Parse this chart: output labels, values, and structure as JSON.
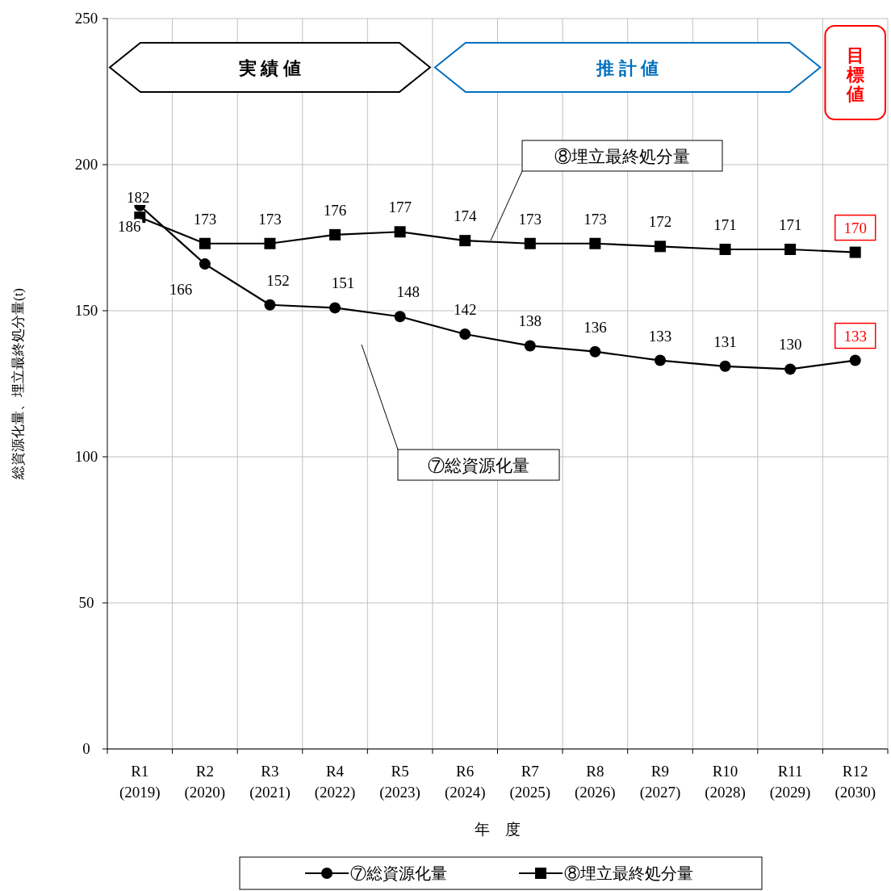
{
  "chart_data": {
    "type": "line",
    "xlabel": "年　度",
    "ylabel": "総資源化量、埋立最終処分量(t)",
    "categories": [
      "R1\n(2019)",
      "R2\n(2020)",
      "R3\n(2021)",
      "R4\n(2022)",
      "R5\n(2023)",
      "R6\n(2024)",
      "R7\n(2025)",
      "R8\n(2026)",
      "R9\n(2027)",
      "R10\n(2028)",
      "R11\n(2029)",
      "R12\n(2030)"
    ],
    "series": [
      {
        "name": "⑦総資源化量",
        "color": "#000000",
        "marker": "circle",
        "values": [
          186,
          166,
          152,
          151,
          148,
          142,
          138,
          136,
          133,
          131,
          130,
          133
        ]
      },
      {
        "name": "⑧埋立最終処分量",
        "color": "#000000",
        "marker": "square",
        "values": [
          182,
          173,
          173,
          176,
          177,
          174,
          173,
          173,
          172,
          171,
          171,
          170
        ]
      }
    ],
    "ylim": [
      0,
      250
    ],
    "yticks": [
      0,
      50,
      100,
      150,
      200,
      250
    ],
    "annotations": [
      "実 績 値",
      "推 計 値",
      "目標値"
    ],
    "data_labels": true,
    "grid": true,
    "legend": "bottom",
    "line_style": "solid"
  }
}
